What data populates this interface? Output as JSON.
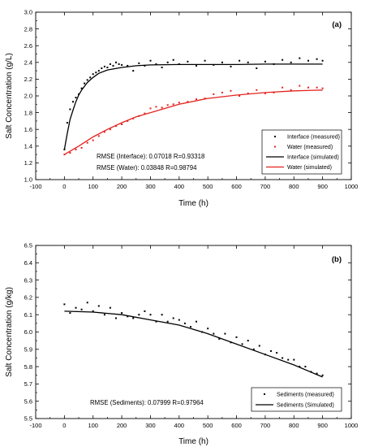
{
  "chart_data": [
    {
      "type": "scatter",
      "panel_label": "(a)",
      "xlabel": "Time (h)",
      "ylabel": "Salt Concentration (g/L)",
      "xlim": [
        -100,
        1000
      ],
      "ylim": [
        1.0,
        3.0
      ],
      "x_ticks": [
        -100,
        0,
        100,
        200,
        300,
        400,
        500,
        600,
        700,
        800,
        900,
        1000
      ],
      "y_ticks": [
        1.0,
        1.2,
        1.4,
        1.6,
        1.8,
        2.0,
        2.2,
        2.4,
        2.6,
        2.8,
        3.0
      ],
      "legend_position": "bottom-right",
      "colors": {
        "interface": "#000000",
        "water": "#e3231f"
      },
      "series": [
        {
          "name": "Interface (measured)",
          "kind": "points",
          "color": "#000000",
          "x": [
            0,
            10,
            20,
            30,
            40,
            50,
            60,
            70,
            80,
            90,
            100,
            110,
            120,
            130,
            140,
            150,
            160,
            170,
            180,
            190,
            200,
            220,
            240,
            260,
            280,
            300,
            320,
            340,
            360,
            380,
            400,
            430,
            460,
            490,
            520,
            550,
            580,
            610,
            640,
            670,
            700,
            730,
            760,
            790,
            820,
            850,
            880,
            900
          ],
          "y": [
            1.36,
            1.68,
            1.84,
            1.93,
            1.98,
            2.02,
            2.09,
            2.15,
            2.19,
            2.22,
            2.26,
            2.28,
            2.3,
            2.33,
            2.35,
            2.34,
            2.38,
            2.36,
            2.4,
            2.38,
            2.37,
            2.36,
            2.3,
            2.39,
            2.36,
            2.42,
            2.38,
            2.34,
            2.4,
            2.43,
            2.38,
            2.41,
            2.36,
            2.42,
            2.37,
            2.4,
            2.35,
            2.42,
            2.4,
            2.33,
            2.41,
            2.38,
            2.43,
            2.4,
            2.45,
            2.42,
            2.44,
            2.42
          ]
        },
        {
          "name": "Water (measured)",
          "kind": "points",
          "color": "#e3231f",
          "x": [
            0,
            20,
            40,
            60,
            80,
            100,
            120,
            140,
            160,
            180,
            200,
            220,
            240,
            260,
            280,
            300,
            320,
            340,
            360,
            380,
            400,
            430,
            460,
            490,
            520,
            550,
            580,
            610,
            640,
            670,
            700,
            730,
            760,
            790,
            820,
            850,
            880,
            900
          ],
          "y": [
            1.3,
            1.32,
            1.36,
            1.38,
            1.44,
            1.47,
            1.52,
            1.57,
            1.6,
            1.64,
            1.66,
            1.7,
            1.73,
            1.76,
            1.79,
            1.85,
            1.87,
            1.86,
            1.89,
            1.9,
            1.92,
            1.93,
            1.96,
            1.97,
            2.02,
            2.04,
            2.06,
            2.0,
            2.03,
            2.07,
            2.03,
            2.04,
            2.1,
            2.07,
            2.12,
            2.1,
            2.1,
            2.09
          ]
        },
        {
          "name": "Interface (simulated)",
          "kind": "line",
          "color": "#000000",
          "x": [
            0,
            10,
            20,
            30,
            40,
            50,
            60,
            80,
            100,
            120,
            150,
            200,
            250,
            300,
            400,
            500,
            600,
            700,
            800,
            900
          ],
          "y": [
            1.36,
            1.55,
            1.72,
            1.83,
            1.93,
            2.01,
            2.07,
            2.16,
            2.22,
            2.27,
            2.31,
            2.34,
            2.36,
            2.37,
            2.375,
            2.375,
            2.375,
            2.38,
            2.38,
            2.38
          ]
        },
        {
          "name": "Water (simulated)",
          "kind": "line",
          "color": "#e3231f",
          "x": [
            0,
            50,
            100,
            150,
            200,
            250,
            300,
            400,
            500,
            600,
            700,
            800,
            900
          ],
          "y": [
            1.3,
            1.4,
            1.51,
            1.6,
            1.68,
            1.75,
            1.8,
            1.9,
            1.97,
            2.01,
            2.04,
            2.06,
            2.07
          ]
        }
      ],
      "annotations": [
        "RMSE (Interface): 0.07018  R=0.93318",
        "RMSE (Water): 0.03848  R=0.98794"
      ]
    },
    {
      "type": "scatter",
      "panel_label": "(b)",
      "xlabel": "Time (h)",
      "ylabel": "Salt Concentration (g/kg)",
      "xlim": [
        -100,
        1000
      ],
      "ylim": [
        5.5,
        6.5
      ],
      "x_ticks": [
        -100,
        0,
        100,
        200,
        300,
        400,
        500,
        600,
        700,
        800,
        900,
        1000
      ],
      "y_ticks": [
        5.5,
        5.6,
        5.7,
        5.8,
        5.9,
        6.0,
        6.1,
        6.2,
        6.3,
        6.4,
        6.5
      ],
      "legend_position": "bottom-right",
      "colors": {
        "sediments": "#000000"
      },
      "series": [
        {
          "name": "Sediments (measured)",
          "kind": "points",
          "color": "#000000",
          "x": [
            0,
            20,
            40,
            60,
            80,
            100,
            120,
            140,
            160,
            180,
            200,
            220,
            240,
            260,
            280,
            300,
            320,
            340,
            360,
            380,
            400,
            420,
            440,
            460,
            480,
            500,
            520,
            540,
            560,
            580,
            600,
            620,
            640,
            660,
            680,
            700,
            720,
            740,
            760,
            780,
            800,
            820,
            840,
            860,
            880,
            900
          ],
          "y": [
            6.16,
            6.11,
            6.14,
            6.13,
            6.17,
            6.12,
            6.15,
            6.1,
            6.14,
            6.08,
            6.11,
            6.09,
            6.08,
            6.1,
            6.12,
            6.1,
            6.06,
            6.1,
            6.06,
            6.08,
            6.07,
            6.05,
            6.03,
            6.06,
            6.0,
            6.02,
            5.99,
            5.96,
            5.99,
            5.94,
            5.97,
            5.93,
            5.95,
            5.9,
            5.92,
            5.87,
            5.89,
            5.88,
            5.85,
            5.84,
            5.84,
            5.8,
            5.8,
            5.77,
            5.76,
            5.75
          ]
        },
        {
          "name": "Sediments (Simulated)",
          "kind": "line",
          "color": "#000000",
          "x": [
            0,
            100,
            200,
            300,
            400,
            500,
            600,
            700,
            800,
            900
          ],
          "y": [
            6.12,
            6.115,
            6.1,
            6.07,
            6.04,
            5.99,
            5.93,
            5.87,
            5.81,
            5.74
          ]
        }
      ],
      "annotations": [
        "RMSE (Sediments): 0.07999  R=0.97964"
      ]
    }
  ]
}
